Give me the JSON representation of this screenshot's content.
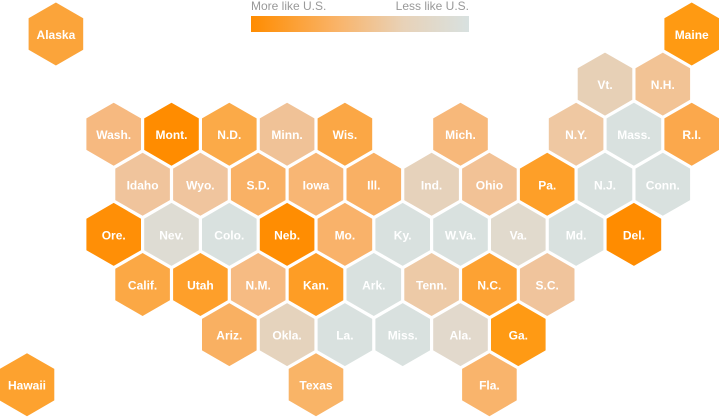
{
  "legend": {
    "more_label": "More like U.S.",
    "less_label": "Less like U.S.",
    "gradient_colors": [
      "#ff8c00",
      "#d8e1e0"
    ]
  },
  "states": [
    {
      "label": "Alaska",
      "row": 0,
      "col": 0.5,
      "color": "#fba43a"
    },
    {
      "label": "Maine",
      "row": 0,
      "col": 11.5,
      "color": "#ff9a12"
    },
    {
      "label": "Vt.",
      "row": 1,
      "col": 10,
      "color": "#e7d0b6"
    },
    {
      "label": "N.H.",
      "row": 1,
      "col": 11,
      "color": "#f2c395"
    },
    {
      "label": "Wash.",
      "row": 2,
      "col": 1.5,
      "color": "#f6b980"
    },
    {
      "label": "Mont.",
      "row": 2,
      "col": 2.5,
      "color": "#ff8c00"
    },
    {
      "label": "N.D.",
      "row": 2,
      "col": 3.5,
      "color": "#fbaa48"
    },
    {
      "label": "Minn.",
      "row": 2,
      "col": 4.5,
      "color": "#f0c297"
    },
    {
      "label": "Wis.",
      "row": 2,
      "col": 5.5,
      "color": "#fba745"
    },
    {
      "label": "Mich.",
      "row": 2,
      "col": 7.5,
      "color": "#f7b87a"
    },
    {
      "label": "N.Y.",
      "row": 2,
      "col": 9.5,
      "color": "#efc8a2"
    },
    {
      "label": "Mass.",
      "row": 2,
      "col": 10.5,
      "color": "#d9e1df"
    },
    {
      "label": "R.I.",
      "row": 2,
      "col": 11.5,
      "color": "#fba84c"
    },
    {
      "label": "Idaho",
      "row": 3,
      "col": 2,
      "color": "#f0c49c"
    },
    {
      "label": "Wyo.",
      "row": 3,
      "col": 3,
      "color": "#f0c59e"
    },
    {
      "label": "S.D.",
      "row": 3,
      "col": 4,
      "color": "#f9b165"
    },
    {
      "label": "Iowa",
      "row": 3,
      "col": 5,
      "color": "#f8b674"
    },
    {
      "label": "Ill.",
      "row": 3,
      "col": 6,
      "color": "#f9b064"
    },
    {
      "label": "Ind.",
      "row": 3,
      "col": 7,
      "color": "#e6d2bb"
    },
    {
      "label": "Ohio",
      "row": 3,
      "col": 8,
      "color": "#f2c296"
    },
    {
      "label": "Pa.",
      "row": 3,
      "col": 9,
      "color": "#fe9f28"
    },
    {
      "label": "N.J.",
      "row": 3,
      "col": 10,
      "color": "#d9e1df"
    },
    {
      "label": "Conn.",
      "row": 3,
      "col": 11,
      "color": "#d9e1df"
    },
    {
      "label": "Ore.",
      "row": 4,
      "col": 1.5,
      "color": "#ff8f06"
    },
    {
      "label": "Nev.",
      "row": 4,
      "col": 2.5,
      "color": "#dedcd3"
    },
    {
      "label": "Colo.",
      "row": 4,
      "col": 3.5,
      "color": "#d9e1df"
    },
    {
      "label": "Neb.",
      "row": 4,
      "col": 4.5,
      "color": "#ff8d02"
    },
    {
      "label": "Mo.",
      "row": 4,
      "col": 5.5,
      "color": "#f9b26a"
    },
    {
      "label": "Ky.",
      "row": 4,
      "col": 6.5,
      "color": "#d9e1df"
    },
    {
      "label": "W.Va.",
      "row": 4,
      "col": 7.5,
      "color": "#d9e1df"
    },
    {
      "label": "Va.",
      "row": 4,
      "col": 8.5,
      "color": "#e1dacd"
    },
    {
      "label": "Md.",
      "row": 4,
      "col": 9.5,
      "color": "#d9e1df"
    },
    {
      "label": "Del.",
      "row": 4,
      "col": 10.5,
      "color": "#ff8c00"
    },
    {
      "label": "Calif.",
      "row": 5,
      "col": 2,
      "color": "#fba845"
    },
    {
      "label": "Utah",
      "row": 5,
      "col": 3,
      "color": "#fe9f2a"
    },
    {
      "label": "N.M.",
      "row": 5,
      "col": 4,
      "color": "#f6bb83"
    },
    {
      "label": "Kan.",
      "row": 5,
      "col": 5,
      "color": "#fe9d25"
    },
    {
      "label": "Ark.",
      "row": 5,
      "col": 6,
      "color": "#d9e1df"
    },
    {
      "label": "Tenn.",
      "row": 5,
      "col": 7,
      "color": "#edcaa7"
    },
    {
      "label": "N.C.",
      "row": 5,
      "col": 8,
      "color": "#fda233"
    },
    {
      "label": "S.C.",
      "row": 5,
      "col": 9,
      "color": "#f0c49c"
    },
    {
      "label": "Ariz.",
      "row": 6,
      "col": 3.5,
      "color": "#f9b062"
    },
    {
      "label": "Okla.",
      "row": 6,
      "col": 4.5,
      "color": "#e5d3bd"
    },
    {
      "label": "La.",
      "row": 6,
      "col": 5.5,
      "color": "#d9e1df"
    },
    {
      "label": "Miss.",
      "row": 6,
      "col": 6.5,
      "color": "#d9e1df"
    },
    {
      "label": "Ala.",
      "row": 6,
      "col": 7.5,
      "color": "#e2d9cc"
    },
    {
      "label": "Ga.",
      "row": 6,
      "col": 8.5,
      "color": "#ff9a14"
    },
    {
      "label": "Hawaii",
      "row": 7,
      "col": 0,
      "color": "#fda22f"
    },
    {
      "label": "Texas",
      "row": 7,
      "col": 5,
      "color": "#f9b467"
    },
    {
      "label": "Fla.",
      "row": 7,
      "col": 8,
      "color": "#f9b46c"
    }
  ]
}
